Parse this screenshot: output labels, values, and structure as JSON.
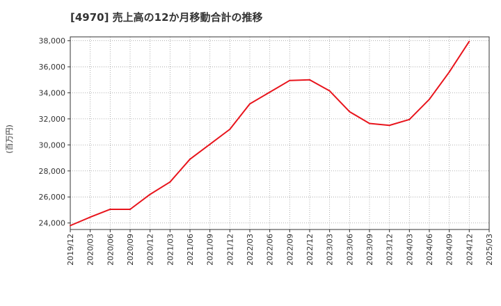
{
  "chart_data": {
    "type": "line",
    "title": "[4970]  売上高の12か月移動合計の推移",
    "ylabel": "(百万円)",
    "xlabel": "",
    "ylim": [
      23500,
      38300
    ],
    "y_ticks": [
      24000,
      26000,
      28000,
      30000,
      32000,
      34000,
      36000,
      38000
    ],
    "y_tick_labels": [
      "24,000",
      "26,000",
      "28,000",
      "30,000",
      "32,000",
      "34,000",
      "36,000",
      "38,000"
    ],
    "x_ticks": [
      "2019/12",
      "2020/03",
      "2020/06",
      "2020/09",
      "2020/12",
      "2021/03",
      "2021/06",
      "2021/09",
      "2021/12",
      "2022/03",
      "2022/06",
      "2022/09",
      "2022/12",
      "2023/03",
      "2023/06",
      "2023/09",
      "2023/12",
      "2024/03",
      "2024/06",
      "2024/09",
      "2024/12",
      "2025/03"
    ],
    "grid": true,
    "series": [
      {
        "name": "売上高12か月移動合計",
        "color": "#e8141c",
        "x": [
          "2019/12",
          "2020/03",
          "2020/06",
          "2020/09",
          "2020/12",
          "2021/03",
          "2021/06",
          "2021/09",
          "2021/12",
          "2022/03",
          "2022/06",
          "2022/09",
          "2022/12",
          "2023/03",
          "2023/06",
          "2023/09",
          "2023/12",
          "2024/03",
          "2024/06",
          "2024/09",
          "2024/12"
        ],
        "values": [
          23800,
          24450,
          25050,
          25050,
          26200,
          27150,
          28900,
          30050,
          31200,
          33150,
          34050,
          34950,
          35000,
          34150,
          32550,
          31650,
          31500,
          31950,
          33500,
          35600,
          37950
        ]
      }
    ]
  }
}
